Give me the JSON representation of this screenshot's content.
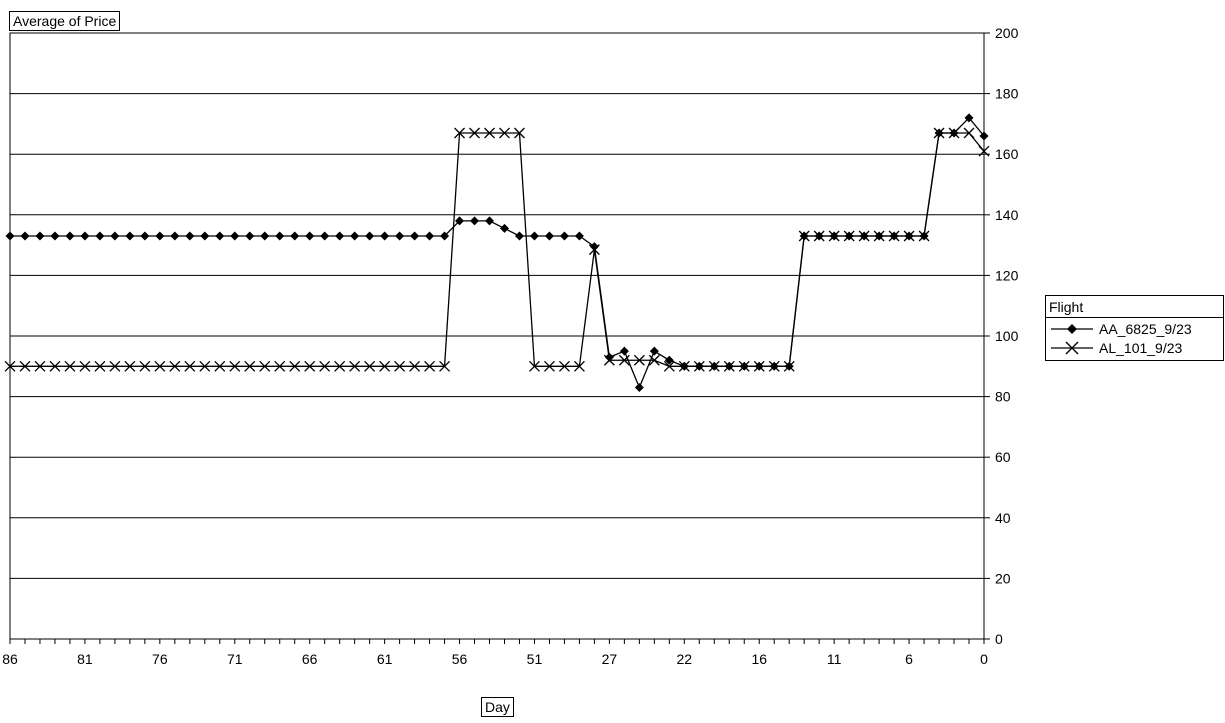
{
  "chart_data": {
    "type": "line",
    "ylabel": "Average of Price",
    "xlabel": "Day",
    "ylim": [
      0,
      200
    ],
    "y_ticks": [
      0,
      20,
      40,
      60,
      80,
      100,
      120,
      140,
      160,
      180,
      200
    ],
    "x_tick_labels": [
      "86",
      "81",
      "76",
      "71",
      "66",
      "61",
      "56",
      "51",
      "27",
      "22",
      "16",
      "11",
      "6",
      "0"
    ],
    "grid": true,
    "y_axis_position": "right",
    "legend_title": "Flight",
    "legend_position": "right",
    "series": [
      {
        "name": "AA_6825_9/23",
        "marker": "diamond",
        "values": [
          133,
          133,
          133,
          133,
          133,
          133,
          133,
          133,
          133,
          133,
          133,
          133,
          133,
          133,
          133,
          133,
          133,
          133,
          133,
          133,
          133,
          133,
          133,
          133,
          133,
          133,
          133,
          133,
          133,
          133,
          138,
          138,
          138,
          135.5,
          133,
          133,
          133,
          133,
          133,
          129.5,
          93,
          95,
          83,
          95,
          92,
          90,
          90,
          90,
          90,
          90,
          90,
          90,
          90,
          133,
          133,
          133,
          133,
          133,
          133,
          133,
          133,
          133,
          167,
          167,
          172,
          166
        ]
      },
      {
        "name": "AL_101_9/23",
        "marker": "x",
        "values": [
          90,
          90,
          90,
          90,
          90,
          90,
          90,
          90,
          90,
          90,
          90,
          90,
          90,
          90,
          90,
          90,
          90,
          90,
          90,
          90,
          90,
          90,
          90,
          90,
          90,
          90,
          90,
          90,
          90,
          90,
          167,
          167,
          167,
          167,
          167,
          90,
          90,
          90,
          90,
          128.5,
          92,
          92,
          92,
          92,
          90,
          90,
          90,
          90,
          90,
          90,
          90,
          90,
          90,
          133,
          133,
          133,
          133,
          133,
          133,
          133,
          133,
          133,
          167,
          167,
          167,
          161
        ]
      }
    ]
  }
}
